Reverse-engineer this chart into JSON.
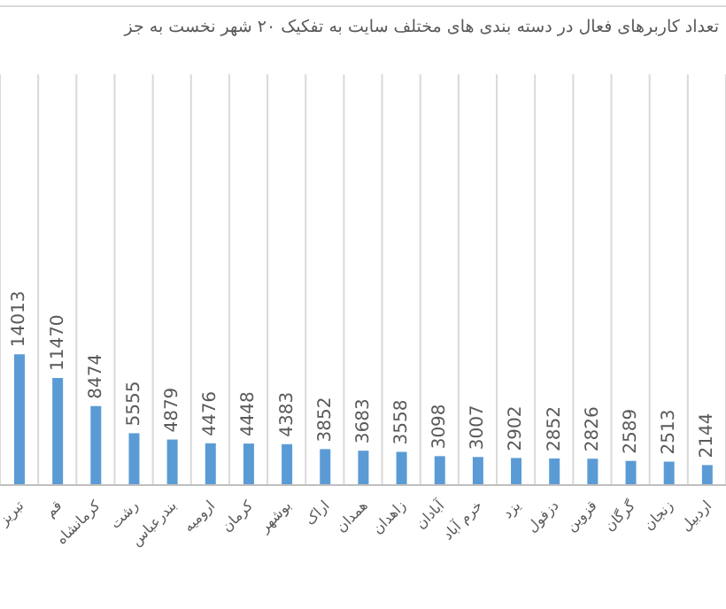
{
  "chart_data": {
    "type": "bar",
    "title": "تعداد کاربرهای فعال در دسته بندی های مختلف سایت به تفکیک ۲۰ شهر نخست به جز",
    "categories": [
      "تبریز",
      "قم",
      "کرمانشاه",
      "رشت",
      "بندرعباس",
      "ارومیه",
      "کرمان",
      "بوشهر",
      "اراک",
      "همدان",
      "زاهدان",
      "آبادان",
      "خرم آباد",
      "یزد",
      "دزفول",
      "قزوین",
      "گرگان",
      "زنجان",
      "اردبیل"
    ],
    "values": [
      14013,
      11470,
      8474,
      5555,
      4879,
      4476,
      4448,
      4383,
      3852,
      3683,
      3558,
      3098,
      3007,
      2902,
      2852,
      2826,
      2589,
      2513,
      2144
    ],
    "color": "#5b9bd5",
    "ylim": [
      0,
      44000
    ],
    "tick_labels": "x",
    "grid": "x",
    "data_labels": true
  }
}
